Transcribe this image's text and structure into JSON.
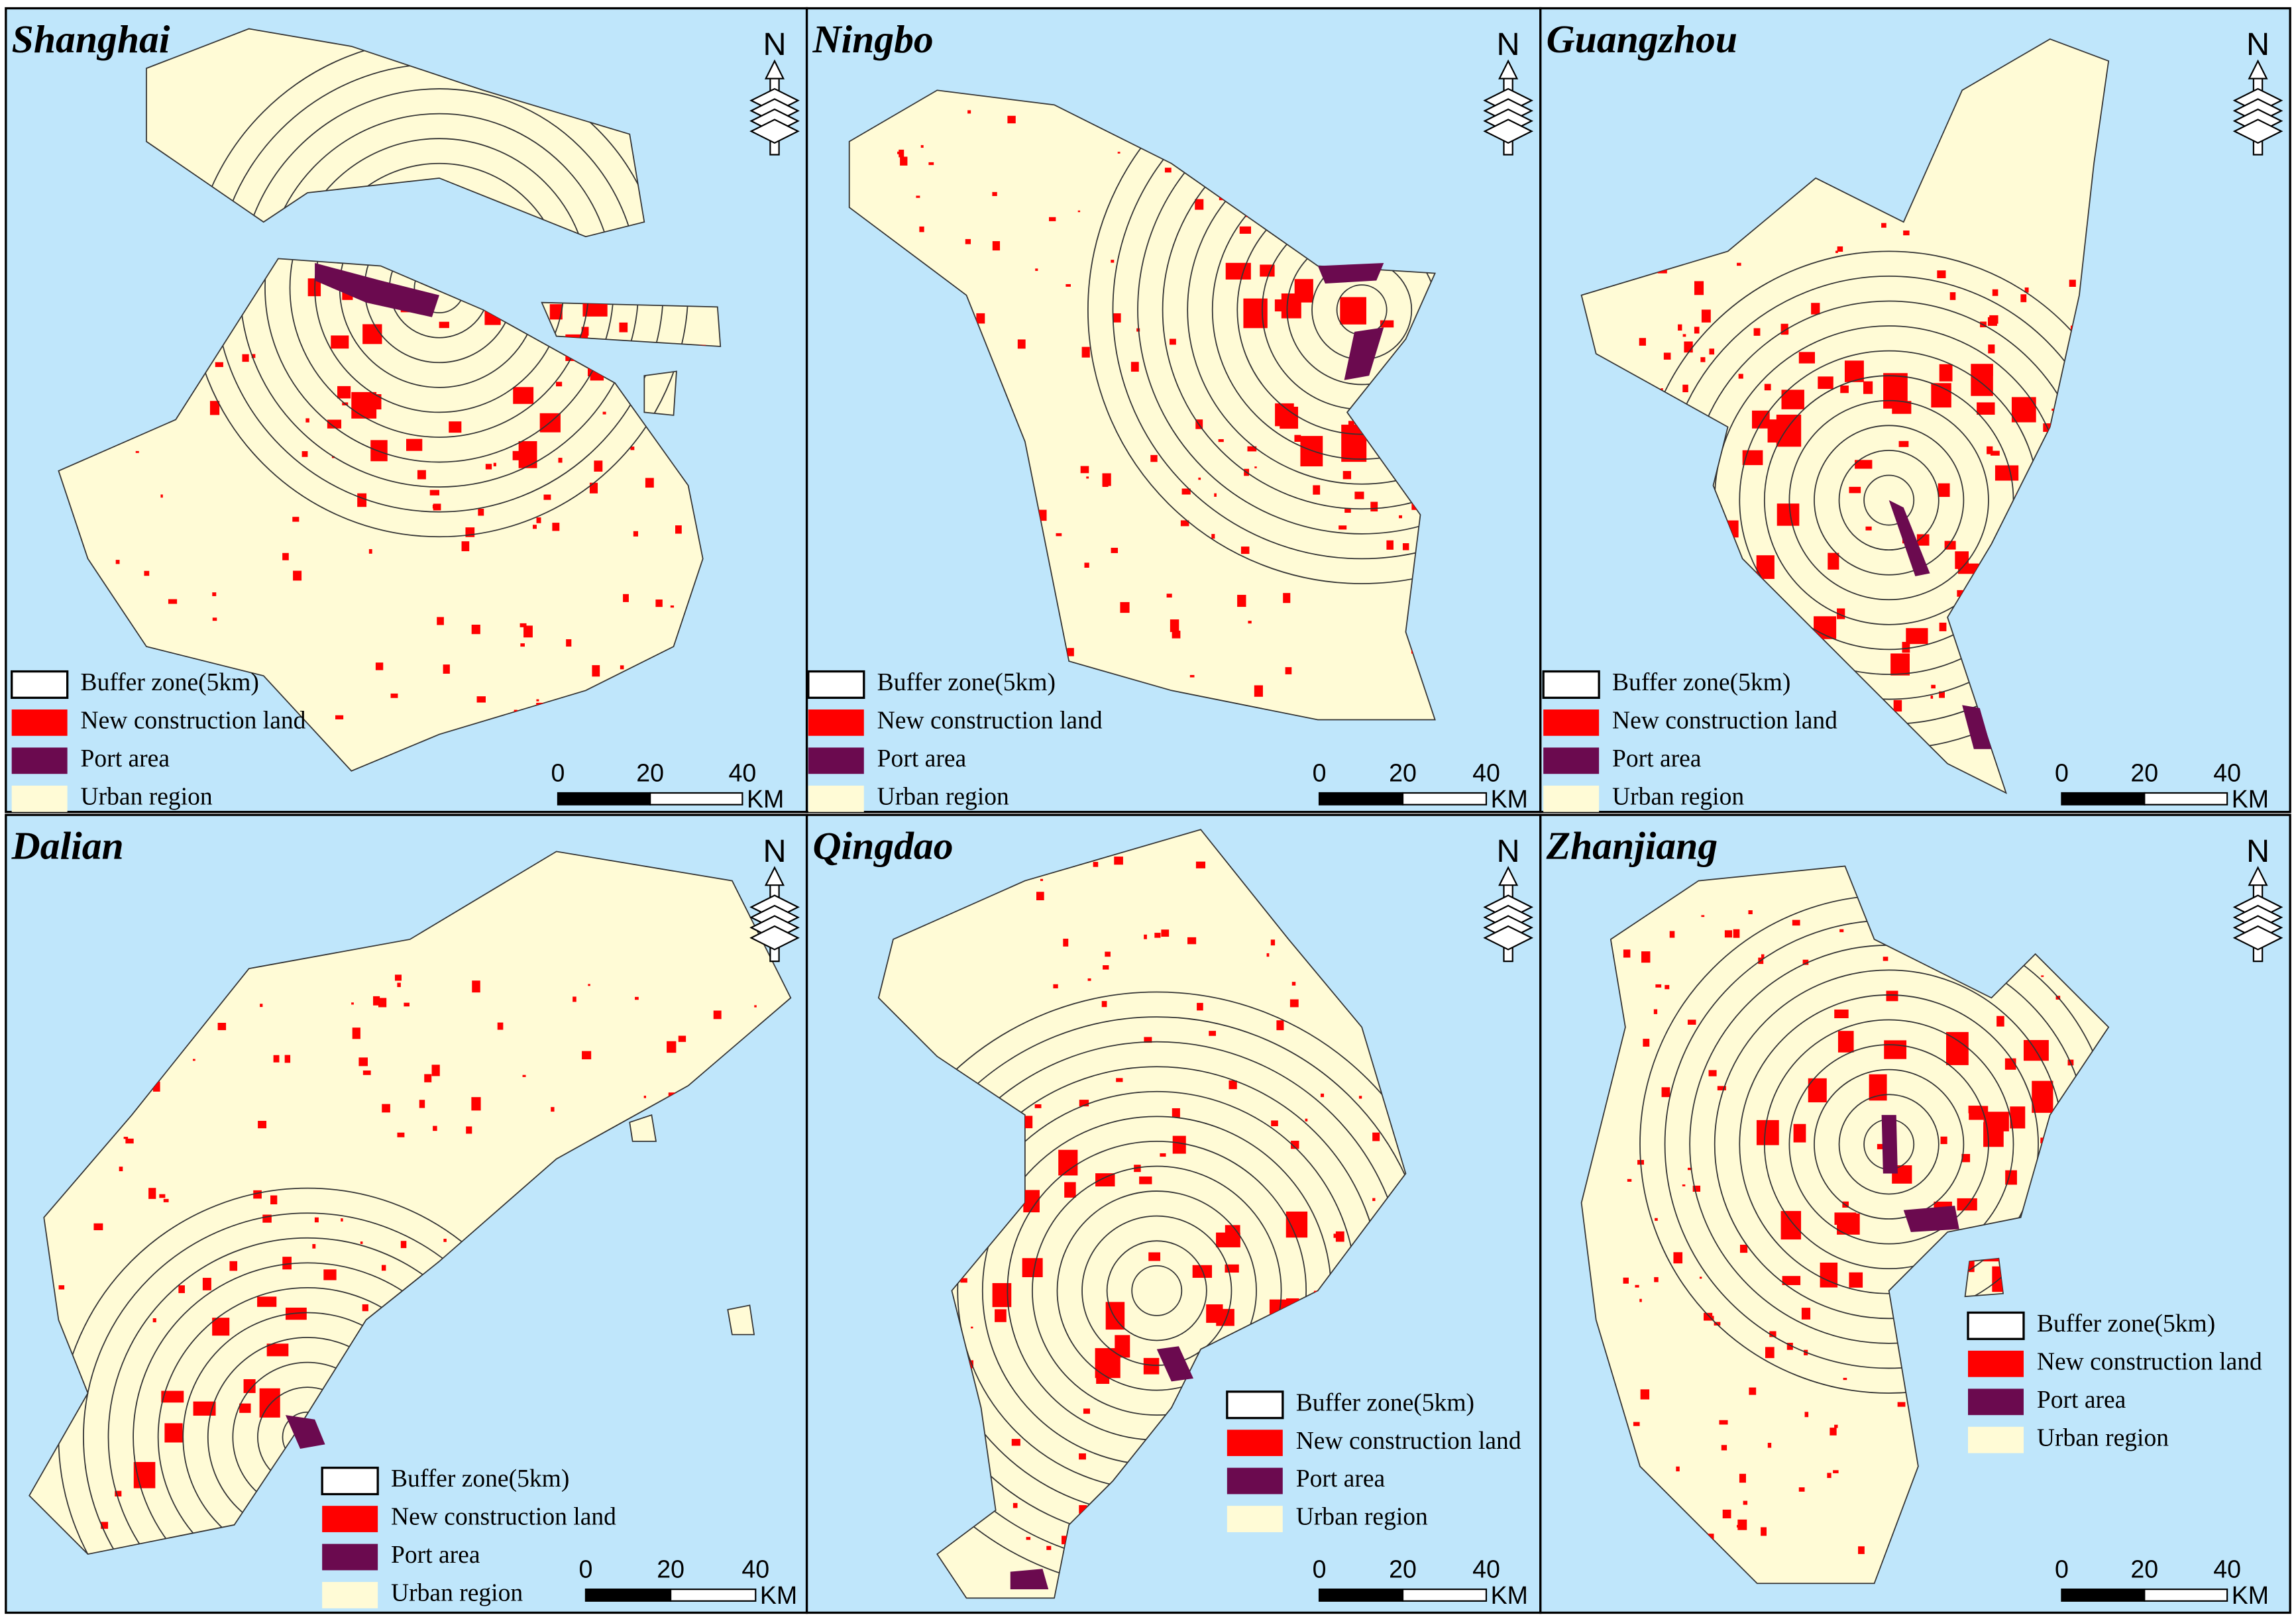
{
  "panels": [
    {
      "title": "Shanghai",
      "legend": [
        "Buffer zone(5km)",
        "New construction land",
        "Port area",
        "Urban region"
      ],
      "scale": {
        "ticks": [
          "0",
          "20",
          "40"
        ],
        "unit": "KM"
      },
      "north": "N"
    },
    {
      "title": "Ningbo",
      "legend": [
        "Buffer zone(5km)",
        "New construction land",
        "Port area",
        "Urban region"
      ],
      "scale": {
        "ticks": [
          "0",
          "20",
          "40"
        ],
        "unit": "KM"
      },
      "north": "N"
    },
    {
      "title": "Guangzhou",
      "legend": [
        "Buffer zone(5km)",
        "New construction land",
        "Port area",
        "Urban region"
      ],
      "scale": {
        "ticks": [
          "0",
          "20",
          "40"
        ],
        "unit": "KM"
      },
      "north": "N"
    },
    {
      "title": "Dalian",
      "legend": [
        "Buffer zone(5km)",
        "New construction land",
        "Port area",
        "Urban region"
      ],
      "scale": {
        "ticks": [
          "0",
          "20",
          "40"
        ],
        "unit": "KM"
      },
      "north": "N"
    },
    {
      "title": "Qingdao",
      "legend": [
        "Buffer zone(5km)",
        "New construction land",
        "Port area",
        "Urban region"
      ],
      "scale": {
        "ticks": [
          "0",
          "20",
          "40"
        ],
        "unit": "KM"
      },
      "north": "N"
    },
    {
      "title": "Zhanjiang",
      "legend": [
        "Buffer zone(5km)",
        "New construction land",
        "Port area",
        "Urban region"
      ],
      "scale": {
        "ticks": [
          "0",
          "20",
          "40"
        ],
        "unit": "KM"
      },
      "north": "N"
    }
  ]
}
